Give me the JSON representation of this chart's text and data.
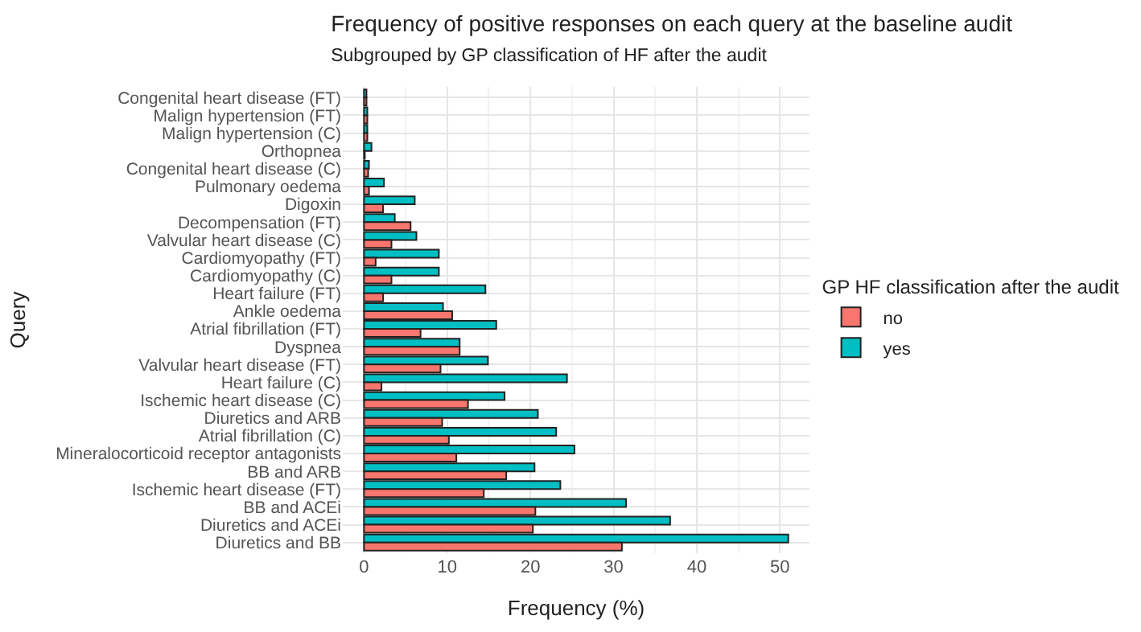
{
  "chart_data": {
    "type": "bar",
    "orientation": "horizontal",
    "title": "Frequency of positive responses on each query at the baseline audit",
    "subtitle": "Subgrouped by GP classification of HF after the audit",
    "xlabel": "Frequency (%)",
    "ylabel": "Query",
    "legend_title": "GP HF classification after the audit",
    "categories": [
      "Congenital heart disease (FT)",
      "Malign hypertension (FT)",
      "Malign hypertension (C)",
      "Orthopnea",
      "Congenital heart disease (C)",
      "Pulmonary oedema",
      "Digoxin",
      "Decompensation (FT)",
      "Valvular heart disease (C)",
      "Cardiomyopathy (FT)",
      "Cardiomyopathy (C)",
      "Heart failure (FT)",
      "Ankle oedema",
      "Atrial fibrillation (FT)",
      "Dyspnea",
      "Valvular heart disease (FT)",
      "Heart failure (C)",
      "Ischemic heart disease (C)",
      "Diuretics and ARB",
      "Atrial fibrillation (C)",
      "Mineralocorticoid receptor antagonists",
      "BB and ARB",
      "Ischemic heart disease (FT)",
      "BB and ACEi",
      "Diuretics and ACEi",
      "Diuretics and BB"
    ],
    "series": [
      {
        "name": "no",
        "color": "#f8766d",
        "values": [
          0.3,
          0.4,
          0.4,
          0.1,
          0.5,
          0.6,
          2.3,
          5.6,
          3.3,
          1.4,
          3.3,
          2.3,
          10.6,
          6.8,
          11.5,
          9.2,
          2.1,
          12.5,
          9.4,
          10.2,
          11.1,
          17.1,
          14.4,
          20.6,
          20.3,
          31.0
        ]
      },
      {
        "name": "yes",
        "color": "#00bfc4",
        "values": [
          0.3,
          0.4,
          0.4,
          0.9,
          0.6,
          2.4,
          6.1,
          3.7,
          6.3,
          9.0,
          9.0,
          14.6,
          9.5,
          15.9,
          11.5,
          14.9,
          24.4,
          16.9,
          20.9,
          23.1,
          25.3,
          20.5,
          23.6,
          31.5,
          36.8,
          51.0
        ]
      }
    ],
    "xlim": [
      -2.55,
      53.55
    ],
    "xticks": [
      0,
      10,
      20,
      30,
      40,
      50
    ],
    "grid": true,
    "legend": "right"
  }
}
